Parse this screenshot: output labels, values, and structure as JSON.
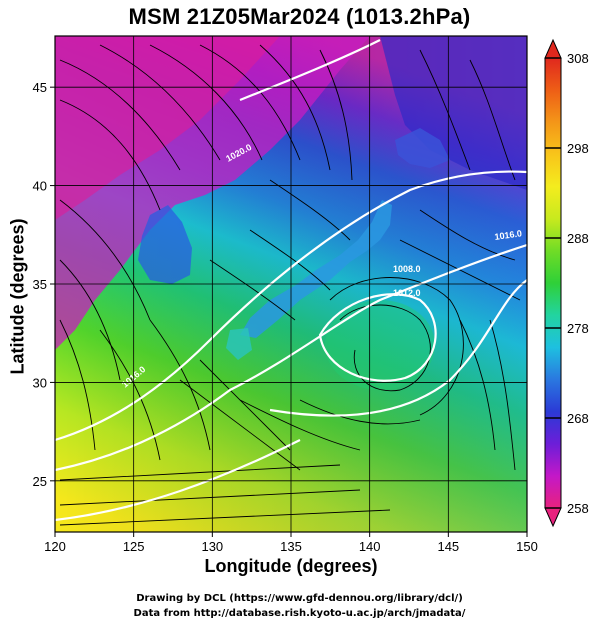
{
  "title": "MSM 21Z05Mar2024 (1013.2hPa)",
  "axes": {
    "xlabel": "Longitude (degrees)",
    "ylabel": "Latitude  (degrees)",
    "x_ticks": [
      "120",
      "125",
      "130",
      "135",
      "140",
      "145",
      "150"
    ],
    "y_ticks": [
      "25",
      "30",
      "35",
      "40",
      "45"
    ],
    "x_range": [
      120,
      150
    ],
    "y_range": [
      22.4,
      47.6
    ]
  },
  "colorbar": {
    "ticks": [
      "308",
      "298",
      "288",
      "278",
      "268",
      "258"
    ],
    "range": [
      258,
      308
    ],
    "colors": [
      "#e8227e",
      "#c318c8",
      "#6c1ed8",
      "#2b3ad6",
      "#2a78e0",
      "#1ec0e0",
      "#22d4a0",
      "#2fd038",
      "#70dc26",
      "#c8ea1e",
      "#f4ec1e",
      "#f8c51a",
      "#f49618",
      "#ee5e16",
      "#e0281e"
    ]
  },
  "contour_labels": [
    "1020.0",
    "1016.0",
    "1008.0",
    "1012.0",
    "1016.0"
  ],
  "footer": {
    "line1": "Drawing by DCL (https://www.gfd-dennou.org/library/dcl/)",
    "line2": "Data from http://database.rish.kyoto-u.ac.jp/arch/jmadata/"
  }
}
